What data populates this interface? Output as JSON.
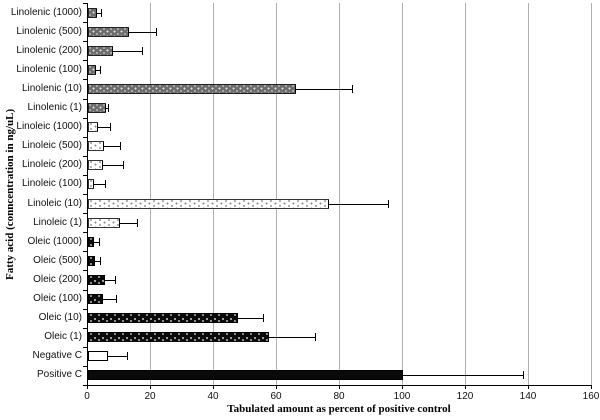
{
  "figure": {
    "title": "",
    "xlabel": "Tabulated amount as percent of positive control",
    "ylabel": "Fatty acid (conncentration in ng/uL)"
  },
  "chart_data": {
    "type": "bar",
    "orientation": "horizontal",
    "title": "",
    "xlabel": "Tabulated amount as percent of positive control",
    "ylabel": "Fatty acid (conncentration in ng/uL)",
    "xlim": [
      0,
      160
    ],
    "xticks": [
      0,
      20,
      40,
      60,
      80,
      100,
      120,
      140,
      160
    ],
    "grid": "vertical gridlines at every x tick, light gray",
    "legend_position": "none",
    "categories": [
      "Linolenic (1000)",
      "Linolenic (500)",
      "Linolenic (200)",
      "Linolenic (100)",
      "Linolenic (10)",
      "Linolenic (1)",
      "Linoleic (1000)",
      "Linoleic (500)",
      "Linoleic (200)",
      "Linoleic (100)",
      "Linoleic (10)",
      "Linoleic (1)",
      "Oleic (1000)",
      "Oleic (500)",
      "Oleic (200)",
      "Oleic (100)",
      "Oleic (10)",
      "Oleic (1)",
      "Negative C",
      "Positive C"
    ],
    "values": [
      2.9,
      13,
      8,
      2.6,
      66,
      5.8,
      3.2,
      5.2,
      4.8,
      1.9,
      76.5,
      10.2,
      1.9,
      2.1,
      5.3,
      4.8,
      47.5,
      57.5,
      6.5,
      100
    ],
    "error_plus": [
      1.5,
      9,
      9.5,
      1.6,
      18,
      0.8,
      4.2,
      5.3,
      6.5,
      3.8,
      19,
      5.8,
      2.0,
      2.1,
      3.7,
      4.5,
      8.5,
      15,
      6.2,
      38.5
    ],
    "groups": [
      "linolenic",
      "linolenic",
      "linolenic",
      "linolenic",
      "linolenic",
      "linolenic",
      "linoleic",
      "linoleic",
      "linoleic",
      "linoleic",
      "linoleic",
      "linoleic",
      "oleic",
      "oleic",
      "oleic",
      "oleic",
      "oleic",
      "oleic",
      "negative",
      "positive"
    ],
    "bar_styles": {
      "linolenic": "dark gray fill with light dotted texture",
      "linoleic": "white fill with sparse gray dotted texture",
      "oleic": "black fill with sparse white dotted texture",
      "negative": "plain white fill with black border",
      "positive": "solid black fill"
    },
    "colors": {
      "axis": "#000000",
      "gridline": "#b0b0b0",
      "linolenic_fill": "#6d6d6d",
      "linoleic_fill": "#ffffff",
      "oleic_fill": "#0b0b0b",
      "negative_fill": "#ffffff",
      "positive_fill": "#0a0a0a"
    }
  }
}
